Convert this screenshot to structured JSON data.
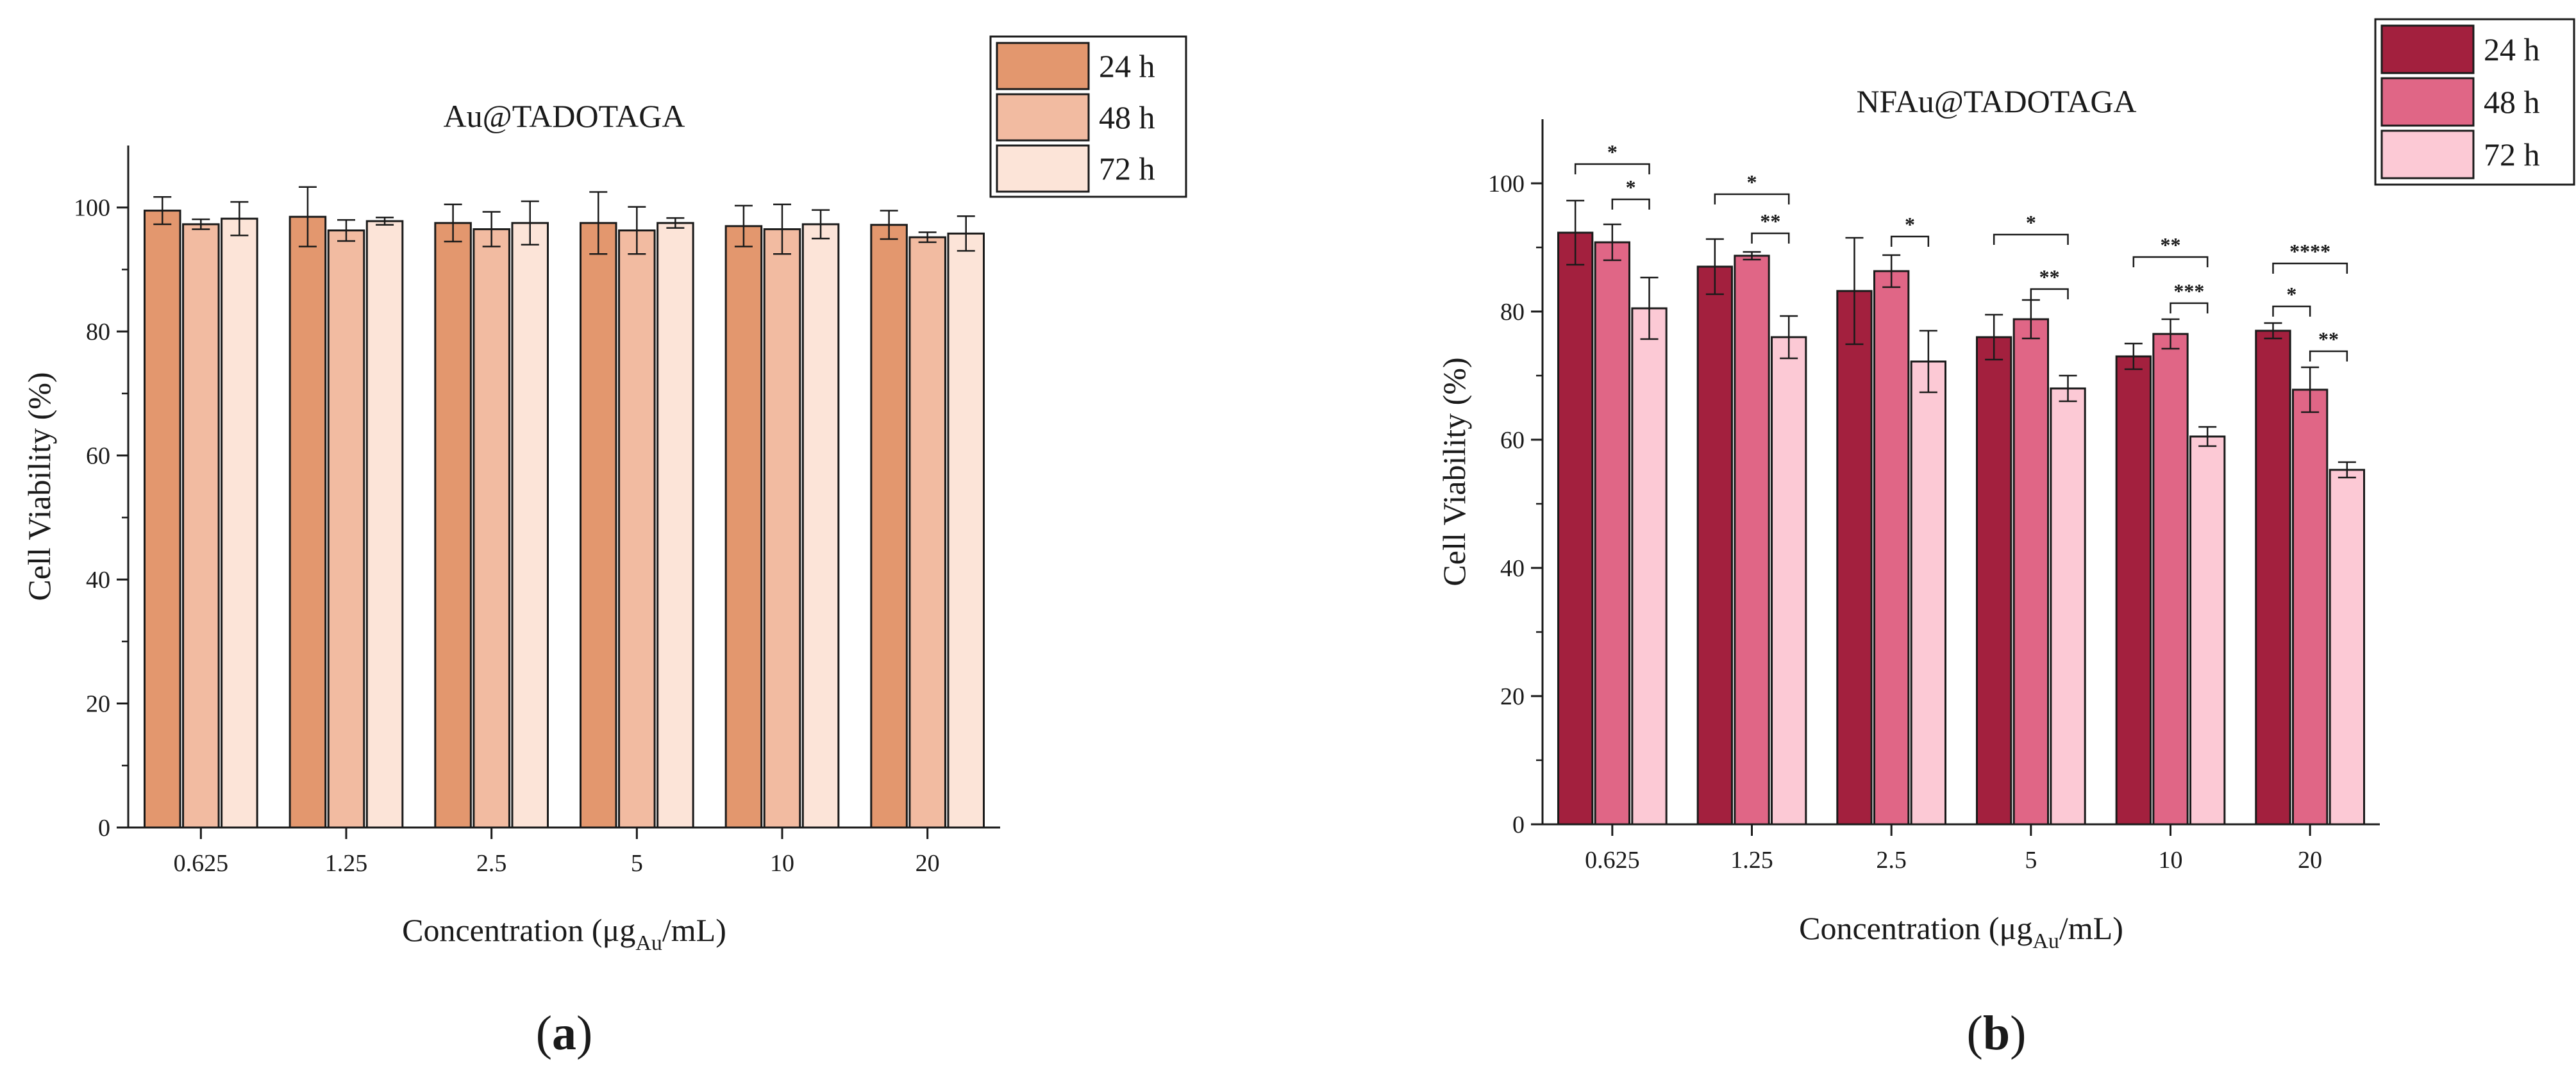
{
  "chart_data": [
    {
      "type": "bar",
      "title": "Au@TADOTAGA",
      "panel_label": "(a)",
      "xlabel": {
        "main": "Concentration (μg",
        "sub": "Au",
        "tail": "/mL)"
      },
      "ylabel": "Cell Viability (%)",
      "ylim": [
        0,
        110
      ],
      "yticks": [
        0,
        20,
        40,
        60,
        80,
        100
      ],
      "categories": [
        "0.625",
        "1.25",
        "2.5",
        "5",
        "10",
        "20"
      ],
      "series": [
        {
          "name": "24 h",
          "color": "#e3976e",
          "values": [
            99.5,
            98.5,
            97.5,
            97.5,
            97.0,
            97.2
          ],
          "errors": [
            2.2,
            4.8,
            3.0,
            5.0,
            3.3,
            2.3
          ]
        },
        {
          "name": "48 h",
          "color": "#f2bba1",
          "values": [
            97.3,
            96.3,
            96.5,
            96.3,
            96.5,
            95.2
          ],
          "errors": [
            0.8,
            1.7,
            2.8,
            3.8,
            4.0,
            0.8
          ]
        },
        {
          "name": "72 h",
          "color": "#fce4d8",
          "values": [
            98.2,
            97.8,
            97.5,
            97.5,
            97.3,
            95.8
          ],
          "errors": [
            2.7,
            0.6,
            3.5,
            0.8,
            2.3,
            2.8
          ]
        }
      ],
      "significance": []
    },
    {
      "type": "bar",
      "title": "NFAu@TADOTAGA",
      "panel_label": "(b)",
      "xlabel": {
        "main": "Concentration (μg",
        "sub": "Au",
        "tail": "/mL)"
      },
      "ylabel": "Cell Viability (%)",
      "ylim": [
        0,
        110
      ],
      "yticks": [
        0,
        20,
        40,
        60,
        80,
        100
      ],
      "categories": [
        "0.625",
        "1.25",
        "2.5",
        "5",
        "10",
        "20"
      ],
      "series": [
        {
          "name": "24 h",
          "color": "#a3203e",
          "values": [
            92.3,
            87.0,
            83.2,
            76.0,
            73.0,
            77.0
          ],
          "errors": [
            5.0,
            4.3,
            8.3,
            3.5,
            2.0,
            1.2
          ]
        },
        {
          "name": "48 h",
          "color": "#e06686",
          "values": [
            90.8,
            88.7,
            86.3,
            78.8,
            76.5,
            67.8
          ],
          "errors": [
            2.8,
            0.6,
            2.5,
            3.0,
            2.3,
            3.5
          ]
        },
        {
          "name": "72 h",
          "color": "#fcc9d5",
          "values": [
            80.5,
            76.0,
            72.2,
            68.0,
            60.5,
            55.3
          ],
          "errors": [
            4.8,
            3.3,
            4.8,
            2.0,
            1.5,
            1.2
          ]
        }
      ],
      "significance": [
        {
          "category": 0,
          "from": 0,
          "to": 2,
          "label": "*",
          "y": 103.0
        },
        {
          "category": 0,
          "from": 1,
          "to": 2,
          "label": "*",
          "y": 97.5
        },
        {
          "category": 1,
          "from": 0,
          "to": 2,
          "label": "*",
          "y": 98.3
        },
        {
          "category": 1,
          "from": 1,
          "to": 2,
          "label": "**",
          "y": 92.2
        },
        {
          "category": 2,
          "from": 1,
          "to": 2,
          "label": "*",
          "y": 91.7
        },
        {
          "category": 3,
          "from": 0,
          "to": 2,
          "label": "*",
          "y": 92.0
        },
        {
          "category": 3,
          "from": 1,
          "to": 2,
          "label": "**",
          "y": 83.5
        },
        {
          "category": 4,
          "from": 0,
          "to": 2,
          "label": "**",
          "y": 88.5
        },
        {
          "category": 4,
          "from": 1,
          "to": 2,
          "label": "***",
          "y": 81.3
        },
        {
          "category": 5,
          "from": 0,
          "to": 2,
          "label": "****",
          "y": 87.5
        },
        {
          "category": 5,
          "from": 0,
          "to": 1,
          "label": "*",
          "y": 80.8
        },
        {
          "category": 5,
          "from": 1,
          "to": 2,
          "label": "**",
          "y": 73.8
        }
      ]
    }
  ]
}
